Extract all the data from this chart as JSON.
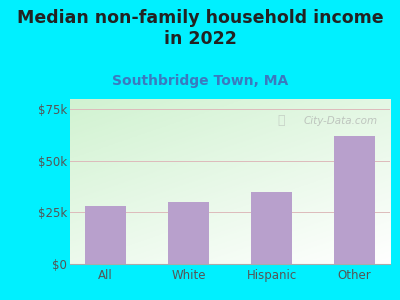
{
  "title": "Median non-family household income\nin 2022",
  "subtitle": "Southbridge Town, MA",
  "categories": [
    "All",
    "White",
    "Hispanic",
    "Other"
  ],
  "values": [
    28000,
    30000,
    35000,
    62000
  ],
  "bar_color": "#b8a0cc",
  "ylim": [
    0,
    80000
  ],
  "yticks": [
    0,
    25000,
    50000,
    75000
  ],
  "ytick_labels": [
    "$0",
    "$25k",
    "$50k",
    "$75k"
  ],
  "title_fontsize": 12.5,
  "subtitle_fontsize": 10,
  "title_color": "#222222",
  "subtitle_color": "#3a7abf",
  "tick_color": "#555555",
  "outer_bg": "#00f0ff",
  "grid_color": "#ddbbbb",
  "watermark": "City-Data.com"
}
